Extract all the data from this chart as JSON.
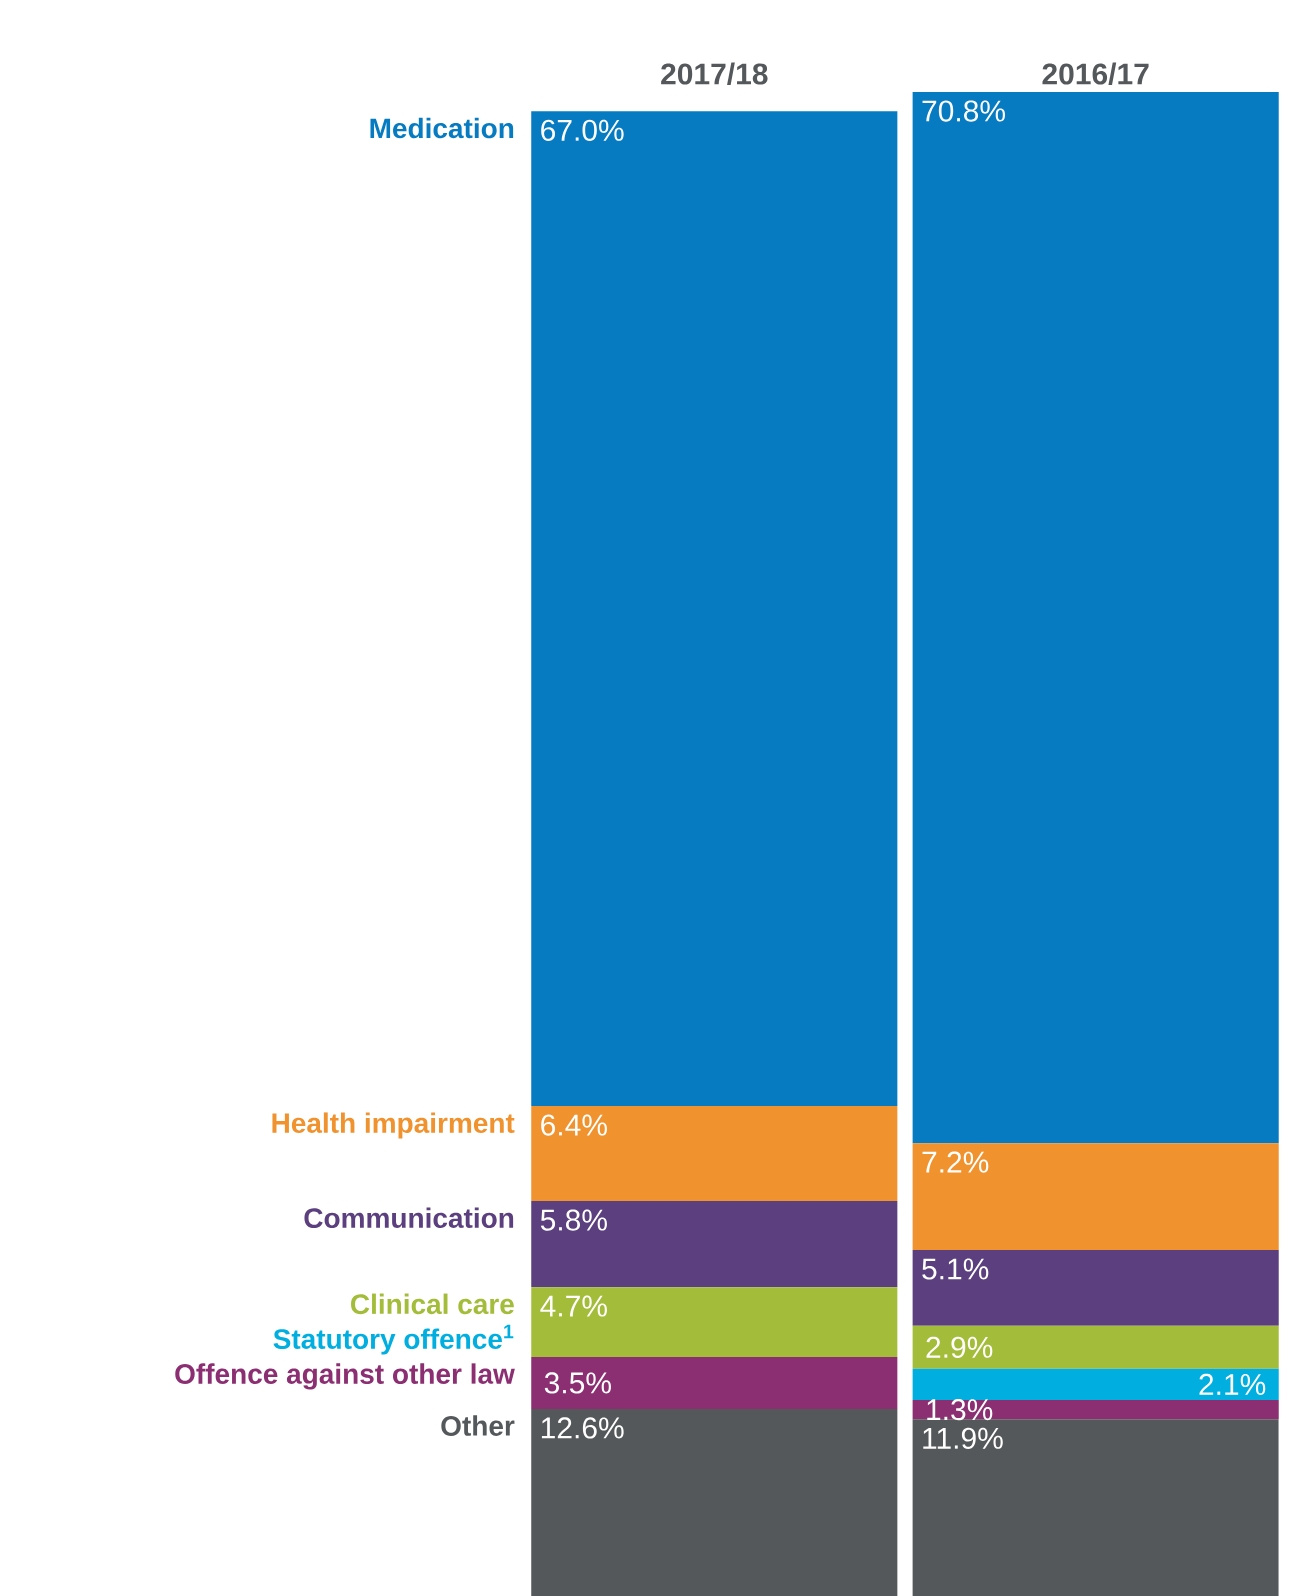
{
  "chart_data": {
    "type": "bar",
    "stacked": true,
    "categories": [
      "2017/18",
      "2016/17"
    ],
    "ylim": [
      0,
      101.3
    ],
    "series": [
      {
        "name": "Other",
        "color": "#54585a",
        "values": [
          12.6,
          11.9
        ],
        "value_labels": [
          "12.6%",
          "11.9%"
        ]
      },
      {
        "name": "Offence against other law",
        "color": "#8b2f72",
        "values": [
          3.5,
          1.3
        ],
        "value_labels": [
          "3.5%",
          "1.3%"
        ]
      },
      {
        "name": "Statutory offence$^{1}$",
        "color": "#00aee0",
        "values": [
          null,
          2.1
        ],
        "value_labels": [
          null,
          "2.1%"
        ]
      },
      {
        "name": "Clinical care",
        "color": "#a3bd3a",
        "values": [
          4.7,
          2.9
        ],
        "value_labels": [
          "4.7%",
          "2.9%"
        ]
      },
      {
        "name": "Communication",
        "color": "#5b3f7e",
        "values": [
          5.8,
          5.1
        ],
        "value_labels": [
          "5.8%",
          "5.1%"
        ]
      },
      {
        "name": "Health impairment",
        "color": "#f0922e",
        "values": [
          6.4,
          7.2
        ],
        "value_labels": [
          "6.4%",
          "7.2%"
        ]
      },
      {
        "name": "Medication",
        "color": "#077bc1",
        "values": [
          67.0,
          70.8
        ],
        "value_labels": [
          "67.0%",
          "70.8%"
        ]
      }
    ]
  }
}
